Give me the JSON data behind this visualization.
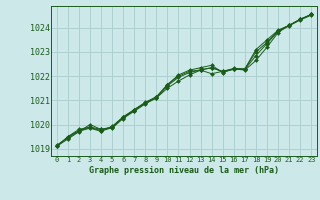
{
  "bg_color": "#cce8e8",
  "grid_color": "#aacccc",
  "line_color": "#1a5c1a",
  "marker_color": "#1a5c1a",
  "title": "Graphe pression niveau de la mer (hPa)",
  "title_color": "#1a5c1a",
  "xlim": [
    -0.5,
    23.5
  ],
  "ylim": [
    1018.7,
    1024.9
  ],
  "xticks": [
    0,
    1,
    2,
    3,
    4,
    5,
    6,
    7,
    8,
    9,
    10,
    11,
    12,
    13,
    14,
    15,
    16,
    17,
    18,
    19,
    20,
    21,
    22,
    23
  ],
  "yticks": [
    1019,
    1020,
    1021,
    1022,
    1023,
    1024
  ],
  "series": [
    [
      1019.1,
      1019.5,
      1019.8,
      1019.9,
      1019.8,
      1019.9,
      1020.3,
      1020.6,
      1020.9,
      1021.1,
      1021.5,
      1021.8,
      1022.05,
      1022.25,
      1022.1,
      1022.2,
      1022.3,
      1022.3,
      1023.1,
      1023.5,
      1023.9,
      1024.1,
      1024.35,
      1024.55
    ],
    [
      1019.1,
      1019.4,
      1019.7,
      1020.0,
      1019.8,
      1019.85,
      1020.25,
      1020.55,
      1020.85,
      1021.1,
      1021.65,
      1022.05,
      1022.25,
      1022.35,
      1022.45,
      1022.15,
      1022.3,
      1022.25,
      1022.65,
      1023.2,
      1023.8,
      1024.1,
      1024.35,
      1024.55
    ],
    [
      1019.15,
      1019.45,
      1019.72,
      1019.85,
      1019.72,
      1019.88,
      1020.28,
      1020.58,
      1020.88,
      1021.12,
      1021.6,
      1021.95,
      1022.15,
      1022.25,
      1022.35,
      1022.18,
      1022.28,
      1022.28,
      1022.85,
      1023.35,
      1023.85,
      1024.08,
      1024.32,
      1024.52
    ],
    [
      1019.1,
      1019.48,
      1019.75,
      1019.88,
      1019.75,
      1019.92,
      1020.32,
      1020.62,
      1020.92,
      1021.15,
      1021.65,
      1022.0,
      1022.2,
      1022.26,
      1022.35,
      1022.2,
      1022.32,
      1022.3,
      1023.0,
      1023.4,
      1023.88,
      1024.1,
      1024.35,
      1024.55
    ]
  ]
}
